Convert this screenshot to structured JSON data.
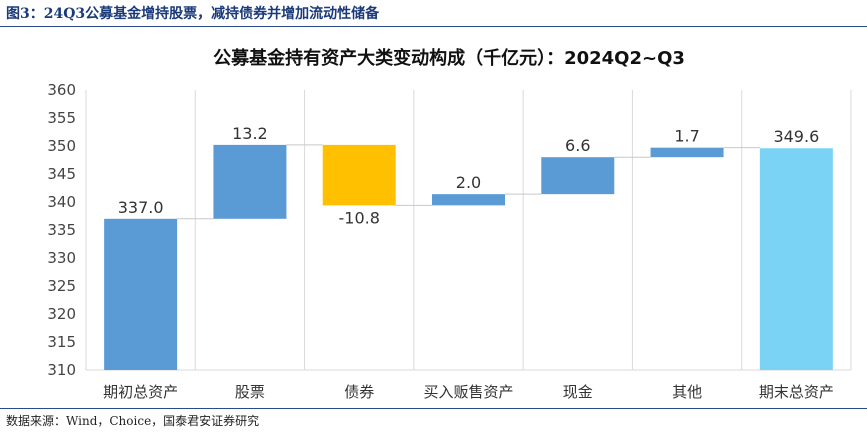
{
  "figure": {
    "title": "图3：24Q3公募基金增持股票，减持债券并增加流动性储备",
    "source": "数据来源：Wind，Choice，国泰君安证券研究"
  },
  "chart_data": {
    "type": "waterfall",
    "title": "公募基金持有资产大类变动构成（千亿元）：2024Q2~Q3",
    "categories": [
      "期初总资产",
      "股票",
      "债券",
      "买入贩售资产",
      "现金",
      "其他",
      "期末总资产"
    ],
    "kinds": [
      "total",
      "delta",
      "delta",
      "delta",
      "delta",
      "delta",
      "total"
    ],
    "values": [
      337.0,
      13.2,
      -10.8,
      2.0,
      6.6,
      1.7,
      349.6
    ],
    "labels": [
      "337.0",
      "13.2",
      "-10.8",
      "2.0",
      "6.6",
      "1.7",
      "349.6"
    ],
    "ylim": [
      310,
      360
    ],
    "yticks": [
      310,
      315,
      320,
      325,
      330,
      335,
      340,
      345,
      350,
      355,
      360
    ],
    "grid": "vertical",
    "colors": {
      "start_total": "#5b9bd5",
      "increase": "#5b9bd5",
      "decrease": "#ffc000",
      "end_total": "#7ad3f5",
      "connector": "#c8c8c8",
      "grid": "#d9d9d9"
    }
  }
}
